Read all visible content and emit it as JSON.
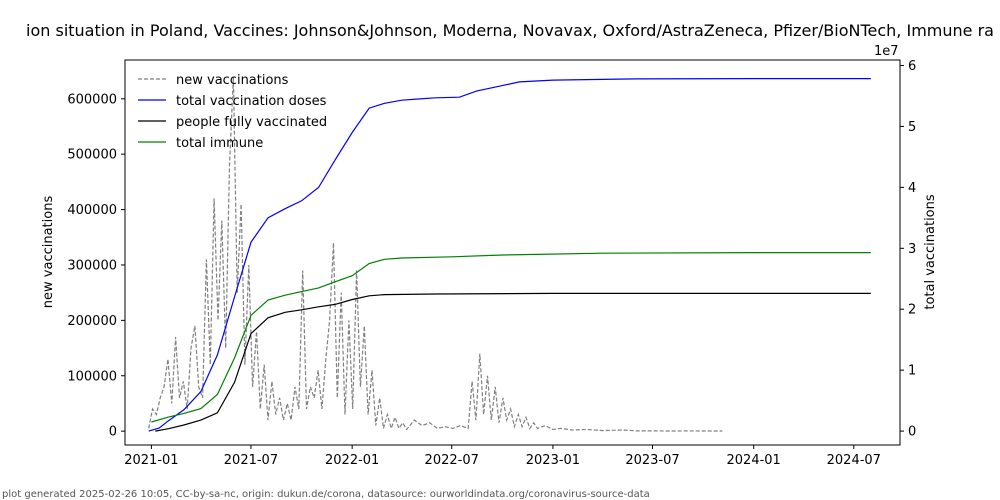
{
  "chart_data": {
    "type": "line",
    "title": "ion situation in Poland, Vaccines: Johnson&Johnson, Moderna, Novavax, Oxford/AstraZeneca, Pfizer/BioNTech, Immune ra",
    "ylabel_left": "new vaccinations",
    "ylabel_right": "total vaccinations",
    "right_axis_multiplier": "1e7",
    "xlim": [
      "2020-11-14",
      "2024-09-23"
    ],
    "ylim_left": [
      -25000,
      670000
    ],
    "ylim_right": [
      -2280000,
      60900000
    ],
    "x_ticks": [
      "2021-01",
      "2021-07",
      "2022-01",
      "2022-07",
      "2023-01",
      "2023-07",
      "2024-01",
      "2024-07"
    ],
    "x_tick_dates": [
      "2021-01-01",
      "2021-07-01",
      "2022-01-01",
      "2022-07-01",
      "2023-01-01",
      "2023-07-01",
      "2024-01-01",
      "2024-07-01"
    ],
    "y_ticks_left": [
      0,
      100000,
      200000,
      300000,
      400000,
      500000,
      600000
    ],
    "y_tick_labels_left": [
      "0",
      "100000",
      "200000",
      "300000",
      "400000",
      "500000",
      "600000"
    ],
    "y_ticks_right": [
      0,
      10000000,
      20000000,
      30000000,
      40000000,
      50000000,
      60000000
    ],
    "y_tick_labels_right": [
      "0",
      "1",
      "2",
      "3",
      "4",
      "5",
      "6"
    ],
    "legend_position": "top-left",
    "series": [
      {
        "name": "new vaccinations",
        "axis": "left",
        "color": "#808080",
        "style": "dashed",
        "points": [
          [
            "2020-12-27",
            5000
          ],
          [
            "2021-01-03",
            40000
          ],
          [
            "2021-01-10",
            30000
          ],
          [
            "2021-01-17",
            60000
          ],
          [
            "2021-01-24",
            80000
          ],
          [
            "2021-01-31",
            130000
          ],
          [
            "2021-02-07",
            50000
          ],
          [
            "2021-02-14",
            170000
          ],
          [
            "2021-02-21",
            60000
          ],
          [
            "2021-02-28",
            90000
          ],
          [
            "2021-03-07",
            40000
          ],
          [
            "2021-03-14",
            150000
          ],
          [
            "2021-03-21",
            190000
          ],
          [
            "2021-03-28",
            80000
          ],
          [
            "2021-04-04",
            60000
          ],
          [
            "2021-04-11",
            310000
          ],
          [
            "2021-04-18",
            120000
          ],
          [
            "2021-04-25",
            420000
          ],
          [
            "2021-05-02",
            200000
          ],
          [
            "2021-05-09",
            380000
          ],
          [
            "2021-05-16",
            150000
          ],
          [
            "2021-05-23",
            480000
          ],
          [
            "2021-05-30",
            640000
          ],
          [
            "2021-06-06",
            250000
          ],
          [
            "2021-06-13",
            410000
          ],
          [
            "2021-06-20",
            120000
          ],
          [
            "2021-06-27",
            300000
          ],
          [
            "2021-07-04",
            80000
          ],
          [
            "2021-07-11",
            180000
          ],
          [
            "2021-07-18",
            40000
          ],
          [
            "2021-07-25",
            120000
          ],
          [
            "2021-08-01",
            20000
          ],
          [
            "2021-08-08",
            90000
          ],
          [
            "2021-08-15",
            30000
          ],
          [
            "2021-08-22",
            60000
          ],
          [
            "2021-08-29",
            20000
          ],
          [
            "2021-09-05",
            50000
          ],
          [
            "2021-09-12",
            20000
          ],
          [
            "2021-09-19",
            80000
          ],
          [
            "2021-09-26",
            40000
          ],
          [
            "2021-10-03",
            290000
          ],
          [
            "2021-10-10",
            40000
          ],
          [
            "2021-10-17",
            80000
          ],
          [
            "2021-10-24",
            60000
          ],
          [
            "2021-10-31",
            110000
          ],
          [
            "2021-11-07",
            40000
          ],
          [
            "2021-11-14",
            130000
          ],
          [
            "2021-11-21",
            200000
          ],
          [
            "2021-11-28",
            340000
          ],
          [
            "2021-12-05",
            60000
          ],
          [
            "2021-12-12",
            250000
          ],
          [
            "2021-12-19",
            30000
          ],
          [
            "2021-12-26",
            200000
          ],
          [
            "2022-01-02",
            40000
          ],
          [
            "2022-01-09",
            290000
          ],
          [
            "2022-01-16",
            80000
          ],
          [
            "2022-01-23",
            190000
          ],
          [
            "2022-01-30",
            30000
          ],
          [
            "2022-02-06",
            110000
          ],
          [
            "2022-02-13",
            10000
          ],
          [
            "2022-02-20",
            60000
          ],
          [
            "2022-02-27",
            5000
          ],
          [
            "2022-03-06",
            30000
          ],
          [
            "2022-03-13",
            5000
          ],
          [
            "2022-03-20",
            25000
          ],
          [
            "2022-03-27",
            5000
          ],
          [
            "2022-04-03",
            15000
          ],
          [
            "2022-04-10",
            3000
          ],
          [
            "2022-04-24",
            20000
          ],
          [
            "2022-05-08",
            10000
          ],
          [
            "2022-05-22",
            15000
          ],
          [
            "2022-06-05",
            5000
          ],
          [
            "2022-06-19",
            8000
          ],
          [
            "2022-07-03",
            5000
          ],
          [
            "2022-07-17",
            10000
          ],
          [
            "2022-07-31",
            5000
          ],
          [
            "2022-08-07",
            90000
          ],
          [
            "2022-08-14",
            20000
          ],
          [
            "2022-08-21",
            140000
          ],
          [
            "2022-08-28",
            30000
          ],
          [
            "2022-09-04",
            100000
          ],
          [
            "2022-09-11",
            20000
          ],
          [
            "2022-09-18",
            80000
          ],
          [
            "2022-09-25",
            15000
          ],
          [
            "2022-10-02",
            60000
          ],
          [
            "2022-10-09",
            20000
          ],
          [
            "2022-10-16",
            40000
          ],
          [
            "2022-10-23",
            8000
          ],
          [
            "2022-10-30",
            30000
          ],
          [
            "2022-11-06",
            8000
          ],
          [
            "2022-11-13",
            25000
          ],
          [
            "2022-11-20",
            5000
          ],
          [
            "2022-11-27",
            15000
          ],
          [
            "2022-12-04",
            5000
          ],
          [
            "2022-12-18",
            10000
          ],
          [
            "2023-01-01",
            3000
          ],
          [
            "2023-01-15",
            5000
          ],
          [
            "2023-02-05",
            2000
          ],
          [
            "2023-03-05",
            3000
          ],
          [
            "2023-04-02",
            1000
          ],
          [
            "2023-05-07",
            2000
          ],
          [
            "2023-06-04",
            500
          ],
          [
            "2023-07-02",
            500
          ],
          [
            "2023-08-06",
            300
          ],
          [
            "2023-09-03",
            500
          ],
          [
            "2023-10-01",
            300
          ],
          [
            "2023-11-05",
            200
          ]
        ]
      },
      {
        "name": "total vaccination doses",
        "axis": "right",
        "color": "#0000ff",
        "style": "solid",
        "points": [
          [
            "2020-12-27",
            0
          ],
          [
            "2021-01-15",
            500000
          ],
          [
            "2021-02-01",
            1700000
          ],
          [
            "2021-03-01",
            3500000
          ],
          [
            "2021-04-01",
            6500000
          ],
          [
            "2021-05-01",
            12500000
          ],
          [
            "2021-06-01",
            22000000
          ],
          [
            "2021-07-01",
            31000000
          ],
          [
            "2021-08-01",
            35000000
          ],
          [
            "2021-09-01",
            36500000
          ],
          [
            "2021-10-01",
            37800000
          ],
          [
            "2021-11-01",
            40000000
          ],
          [
            "2021-12-01",
            44500000
          ],
          [
            "2022-01-01",
            49000000
          ],
          [
            "2022-02-01",
            53000000
          ],
          [
            "2022-03-01",
            53800000
          ],
          [
            "2022-04-01",
            54300000
          ],
          [
            "2022-05-01",
            54500000
          ],
          [
            "2022-06-01",
            54700000
          ],
          [
            "2022-07-15",
            54800000
          ],
          [
            "2022-08-15",
            55800000
          ],
          [
            "2022-10-01",
            56700000
          ],
          [
            "2022-11-01",
            57300000
          ],
          [
            "2023-01-01",
            57600000
          ],
          [
            "2023-06-01",
            57800000
          ],
          [
            "2024-01-01",
            57850000
          ],
          [
            "2024-08-01",
            57850000
          ]
        ]
      },
      {
        "name": "people fully vaccinated",
        "axis": "right",
        "color": "#000000",
        "style": "solid",
        "points": [
          [
            "2021-01-08",
            0
          ],
          [
            "2021-02-01",
            400000
          ],
          [
            "2021-03-01",
            1000000
          ],
          [
            "2021-04-01",
            1800000
          ],
          [
            "2021-05-01",
            3000000
          ],
          [
            "2021-06-01",
            8000000
          ],
          [
            "2021-07-01",
            16000000
          ],
          [
            "2021-08-01",
            18600000
          ],
          [
            "2021-09-01",
            19500000
          ],
          [
            "2021-10-01",
            19900000
          ],
          [
            "2021-11-01",
            20400000
          ],
          [
            "2021-12-01",
            20800000
          ],
          [
            "2022-01-01",
            21600000
          ],
          [
            "2022-02-01",
            22200000
          ],
          [
            "2022-03-01",
            22400000
          ],
          [
            "2022-06-01",
            22500000
          ],
          [
            "2023-01-01",
            22600000
          ],
          [
            "2024-08-01",
            22600000
          ]
        ]
      },
      {
        "name": "total immune",
        "axis": "right",
        "color": "#008000",
        "style": "solid",
        "points": [
          [
            "2021-01-01",
            1500000
          ],
          [
            "2021-02-01",
            2300000
          ],
          [
            "2021-03-01",
            2900000
          ],
          [
            "2021-04-01",
            3700000
          ],
          [
            "2021-05-01",
            6000000
          ],
          [
            "2021-06-01",
            12000000
          ],
          [
            "2021-07-01",
            19000000
          ],
          [
            "2021-08-01",
            21500000
          ],
          [
            "2021-09-01",
            22300000
          ],
          [
            "2021-10-01",
            22900000
          ],
          [
            "2021-11-01",
            23500000
          ],
          [
            "2021-12-01",
            24500000
          ],
          [
            "2022-01-01",
            25500000
          ],
          [
            "2022-02-01",
            27500000
          ],
          [
            "2022-03-01",
            28200000
          ],
          [
            "2022-04-01",
            28400000
          ],
          [
            "2022-07-01",
            28600000
          ],
          [
            "2022-10-01",
            28900000
          ],
          [
            "2023-04-01",
            29200000
          ],
          [
            "2024-01-01",
            29300000
          ],
          [
            "2024-08-01",
            29300000
          ]
        ]
      }
    ]
  },
  "footer": "plot generated 2025-02-26 10:05, CC-by-sa-nc, origin: dukun.de/corona, datasource: ourworldindata.org/coronavirus-source-data"
}
